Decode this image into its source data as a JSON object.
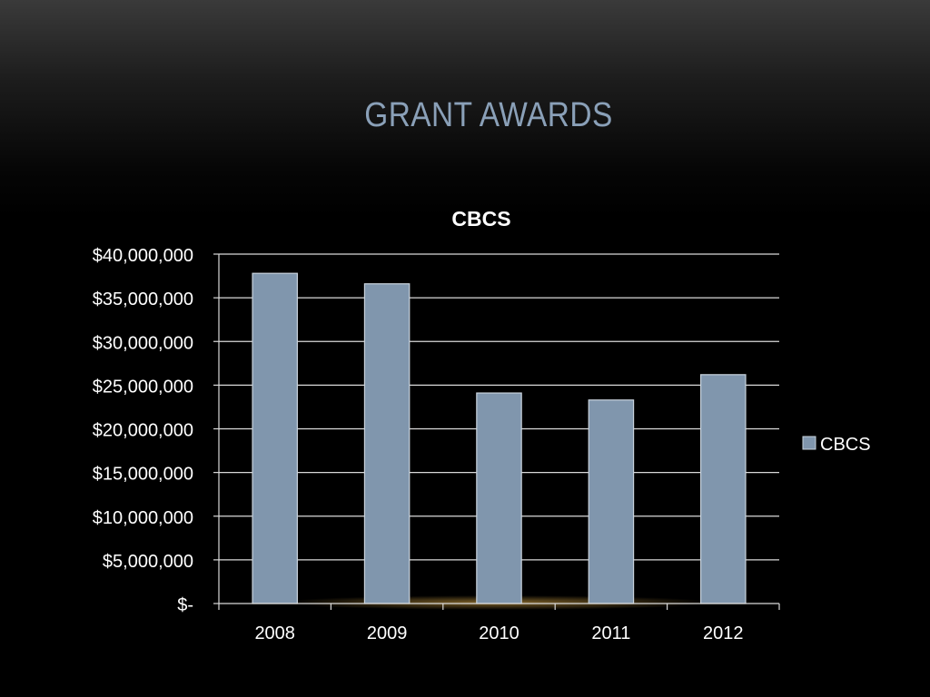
{
  "slide": {
    "title": "GRANT AWARDS"
  },
  "colors": {
    "bar": "#8096ad",
    "bar_edge": "#c9d3dd",
    "grid": "#d9d9d9",
    "text": "#ffffff",
    "title": "#8aa0b8"
  },
  "chart_data": {
    "type": "bar",
    "title": "CBCS",
    "xlabel": "",
    "ylabel": "",
    "categories": [
      "2008",
      "2009",
      "2010",
      "2011",
      "2012"
    ],
    "series": [
      {
        "name": "CBCS",
        "values": [
          37800000,
          36600000,
          24100000,
          23300000,
          26200000
        ]
      }
    ],
    "ylim": [
      0,
      40000000
    ],
    "yticks": [
      0,
      5000000,
      10000000,
      15000000,
      20000000,
      25000000,
      30000000,
      35000000,
      40000000
    ],
    "ytick_labels": [
      "$-",
      "$5,000,000",
      "$10,000,000",
      "$15,000,000",
      "$20,000,000",
      "$25,000,000",
      "$30,000,000",
      "$35,000,000",
      "$40,000,000"
    ],
    "grid": true,
    "legend_position": "right"
  }
}
